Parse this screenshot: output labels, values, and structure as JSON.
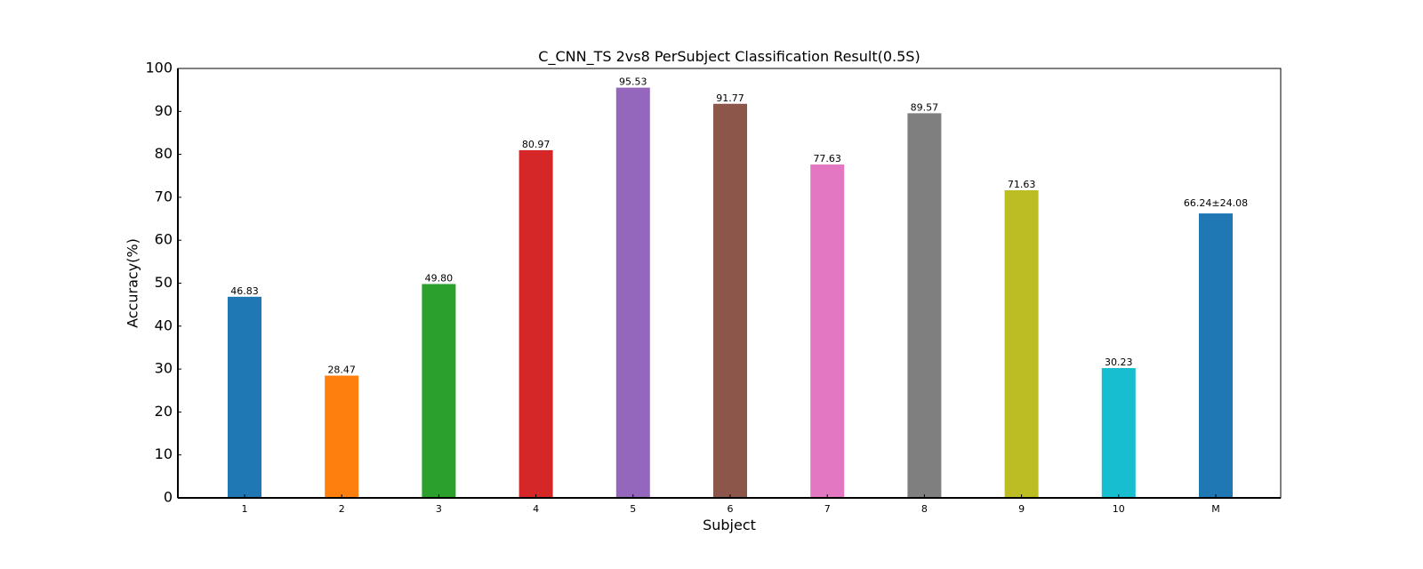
{
  "chart_data": {
    "type": "bar",
    "title": "C_CNN_TS 2vs8 PerSubject Classification Result(0.5S)",
    "xlabel": "Subject",
    "ylabel": "Accuracy(%)",
    "ylim": [
      0,
      100
    ],
    "yticks": [
      0,
      10,
      20,
      30,
      40,
      50,
      60,
      70,
      80,
      90,
      100
    ],
    "categories": [
      "1",
      "2",
      "3",
      "4",
      "5",
      "6",
      "7",
      "8",
      "9",
      "10",
      "M"
    ],
    "values": [
      46.83,
      28.47,
      49.8,
      80.97,
      95.53,
      91.77,
      77.63,
      89.57,
      71.63,
      30.23,
      66.24
    ],
    "data_labels": [
      "46.83",
      "28.47",
      "49.80",
      "80.97",
      "95.53",
      "91.77",
      "77.63",
      "89.57",
      "71.63",
      "30.23",
      "66.24±24.08"
    ],
    "colors": [
      "#1f77b4",
      "#ff7f0e",
      "#2ca02c",
      "#d62728",
      "#9467bd",
      "#8c564b",
      "#e377c2",
      "#7f7f7f",
      "#bcbd22",
      "#17becf",
      "#1f77b4"
    ],
    "label_colors": [
      "#000000",
      "#000000",
      "#000000",
      "#000000",
      "#000000",
      "#000000",
      "#000000",
      "#000000",
      "#000000",
      "#000000",
      "#ff0000"
    ],
    "grid": false,
    "legend": "none"
  }
}
